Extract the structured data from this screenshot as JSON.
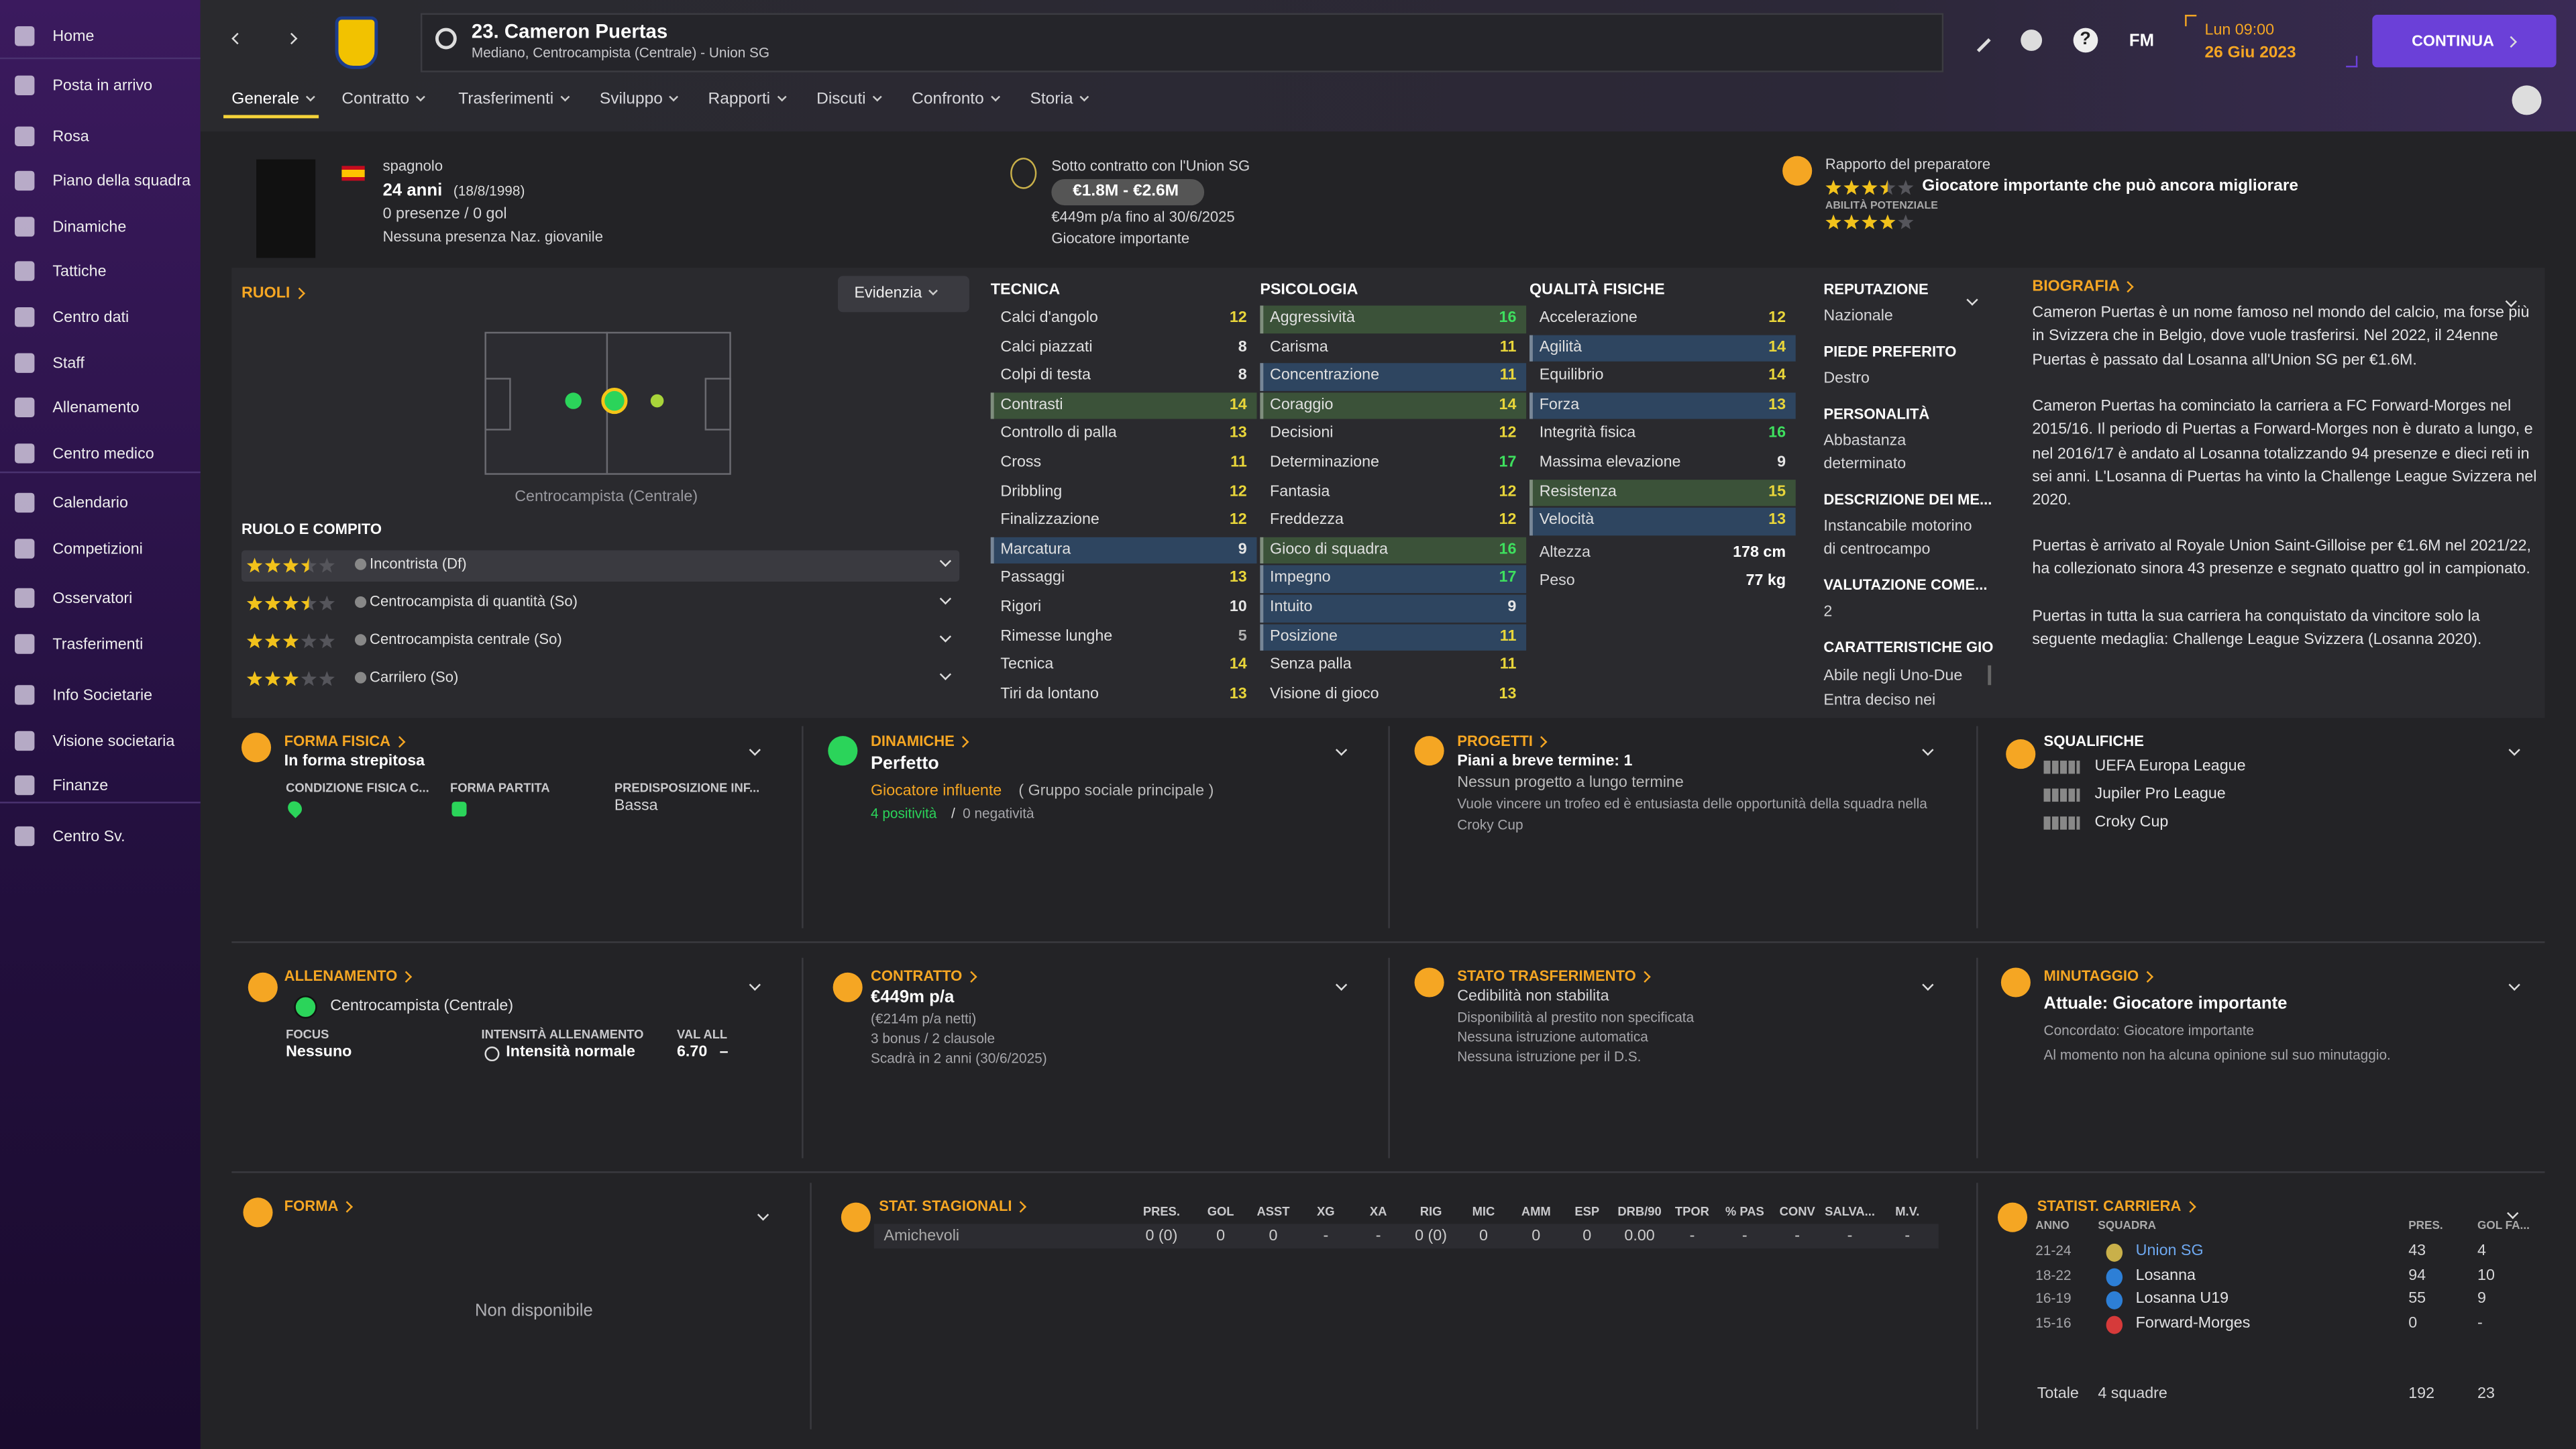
{
  "sidebar": [
    "Home",
    "Posta in arrivo",
    "Rosa",
    "Piano della squadra",
    "Dinamiche",
    "Tattiche",
    "Centro dati",
    "Staff",
    "Allenamento",
    "Centro medico",
    "Calendario",
    "Competizioni",
    "Osservatori",
    "Trasferimenti",
    "Info Societarie",
    "Visione societaria",
    "Finanze",
    "Centro Sv."
  ],
  "header": {
    "title": "23. Cameron Puertas",
    "subtitle": "Mediano, Centrocampista (Centrale) - Union SG",
    "help": "?",
    "brand": "FM",
    "day_time": "Lun 09:00",
    "date": "26 Giu 2023",
    "continue": "CONTINUA"
  },
  "tabs": [
    "Generale",
    "Contratto",
    "Trasferimenti",
    "Sviluppo",
    "Rapporti",
    "Discuti",
    "Confronto",
    "Storia"
  ],
  "profile": {
    "nationality": "spagnolo",
    "age": "24 anni",
    "birth_date": "(18/8/1998)",
    "appearances": "0 presenze / 0 gol",
    "youth_caps": "Nessuna presenza Naz. giovanile"
  },
  "contract_summary": {
    "club": "Sotto contratto con l'Union SG",
    "value": "€1.8M - €2.6M",
    "wage": "€449m p/a fino al 30/6/2025",
    "status": "Giocatore importante"
  },
  "coach_report": {
    "title": "Rapporto del preparatore",
    "current_stars": 3.5,
    "summary": "Giocatore importante che può ancora migliorare",
    "potential_label": "ABILITÀ POTENZIALE",
    "potential_stars": 4
  },
  "roles": {
    "title": "RUOLI",
    "highlight_button": "Evidenzia",
    "position": "Centrocampista (Centrale)",
    "role_title": "RUOLO E COMPITO",
    "list": [
      {
        "name": "Incontrista (Df)",
        "stars": 3.5
      },
      {
        "name": "Centrocampista di quantità (So)",
        "stars": 3.5
      },
      {
        "name": "Centrocampista centrale (So)",
        "stars": 3
      },
      {
        "name": "Carrilero (So)",
        "stars": 3
      }
    ]
  },
  "attributes": {
    "groups": [
      {
        "title": "TECNICA",
        "items": [
          {
            "name": "Calci d'angolo",
            "value": 12
          },
          {
            "name": "Calci piazzati",
            "value": 8
          },
          {
            "name": "Colpi di testa",
            "value": 8
          },
          {
            "name": "Contrasti",
            "value": 14,
            "highlight": "#3b5239"
          },
          {
            "name": "Controllo di palla",
            "value": 13
          },
          {
            "name": "Cross",
            "value": 11
          },
          {
            "name": "Dribbling",
            "value": 12
          },
          {
            "name": "Finalizzazione",
            "value": 12
          },
          {
            "name": "Marcatura",
            "value": 9,
            "highlight": "#2e4560"
          },
          {
            "name": "Passaggi",
            "value": 13
          },
          {
            "name": "Rigori",
            "value": 10
          },
          {
            "name": "Rimesse lunghe",
            "value": 5
          },
          {
            "name": "Tecnica",
            "value": 14
          },
          {
            "name": "Tiri da lontano",
            "value": 13
          }
        ]
      },
      {
        "title": "PSICOLOGIA",
        "items": [
          {
            "name": "Aggressività",
            "value": 16,
            "highlight": "#3b5239"
          },
          {
            "name": "Carisma",
            "value": 11
          },
          {
            "name": "Concentrazione",
            "value": 11,
            "highlight": "#2e4560"
          },
          {
            "name": "Coraggio",
            "value": 14,
            "highlight": "#3b5239"
          },
          {
            "name": "Decisioni",
            "value": 12
          },
          {
            "name": "Determinazione",
            "value": 17
          },
          {
            "name": "Fantasia",
            "value": 12
          },
          {
            "name": "Freddezza",
            "value": 12
          },
          {
            "name": "Gioco di squadra",
            "value": 16,
            "highlight": "#3b5239"
          },
          {
            "name": "Impegno",
            "value": 17,
            "highlight": "#2e4560"
          },
          {
            "name": "Intuito",
            "value": 9,
            "highlight": "#2e4560"
          },
          {
            "name": "Posizione",
            "value": 11,
            "highlight": "#2e4560"
          },
          {
            "name": "Senza palla",
            "value": 11
          },
          {
            "name": "Visione di gioco",
            "value": 13
          }
        ]
      },
      {
        "title": "QUALITÀ FISICHE",
        "items": [
          {
            "name": "Accelerazione",
            "value": 12
          },
          {
            "name": "Agilità",
            "value": 14,
            "highlight": "#2e4560"
          },
          {
            "name": "Equilibrio",
            "value": 14
          },
          {
            "name": "Forza",
            "value": 13,
            "highlight": "#2e4560"
          },
          {
            "name": "Integrità fisica",
            "value": 16
          },
          {
            "name": "Massima elevazione",
            "value": 9
          },
          {
            "name": "Resistenza",
            "value": 15,
            "highlight": "#3b5239"
          },
          {
            "name": "Velocità",
            "value": 13,
            "highlight": "#2e4560"
          }
        ],
        "measures": [
          {
            "name": "Altezza",
            "value": "178 cm"
          },
          {
            "name": "Peso",
            "value": "77 kg"
          }
        ]
      }
    ]
  },
  "info": [
    {
      "label": "REPUTAZIONE",
      "value": "Nazionale"
    },
    {
      "label": "PIEDE PREFERITO",
      "value": "Destro"
    },
    {
      "label": "PERSONALITÀ",
      "value": "Abbastanza determinato"
    },
    {
      "label": "DESCRIZIONE DEI ME...",
      "value": "Instancabile motorino di centrocampo"
    },
    {
      "label": "VALUTAZIONE COME...",
      "value": "2"
    },
    {
      "label": "CARATTERISTICHE GIO",
      "value": [
        "Abile negli Uno-Due",
        "Entra deciso nei"
      ]
    }
  ],
  "biography": {
    "title": "BIOGRAFIA",
    "paragraphs": [
      "Cameron Puertas è un nome famoso nel mondo del calcio, ma forse più in Svizzera che in Belgio, dove vuole trasferirsi. Nel 2022, il 24enne Puertas è passato dal Losanna all'Union SG per €1.6M.",
      "Cameron Puertas ha cominciato la carriera a FC Forward-Morges nel 2015/16. Il periodo di Puertas a Forward-Morges non è durato a lungo, e nel 2016/17 è andato al Losanna totalizzando 94 presenze e dieci reti in sei anni. L'Losanna di Puertas ha vinto la Challenge League Svizzera nel 2020.",
      "Puertas è arrivato al Royale Union Saint-Gilloise per €1.6M nel 2021/22, ha collezionato sinora 43 presenze e segnato quattro gol in campionato.",
      "Puertas in tutta la sua carriera ha conquistato da vincitore solo la seguente medaglia: Challenge League Svizzera (Losanna 2020)."
    ]
  },
  "fitness": {
    "title": "FORMA FISICA",
    "status": "In forma strepitosa",
    "condition_label": "CONDIZIONE FISICA C...",
    "match_label": "FORMA PARTITA",
    "injury_label": "PREDISPOSIZIONE INF...",
    "injury_value": "Bassa"
  },
  "dynamics": {
    "title": "DINAMICHE",
    "status": "Perfetto",
    "influence": "Giocatore influente",
    "group": "( Gruppo sociale principale )",
    "positives": "4 positività",
    "separator": "/",
    "negatives": "0 negatività"
  },
  "plans": {
    "title": "PROGETTI",
    "short_term": "Piani a breve termine: 1",
    "long_term": "Nessun progetto a lungo termine",
    "note": "Vuole vincere un trofeo ed è entusiasta delle opportunità della squadra nella Croky Cup"
  },
  "suspensions": {
    "title": "SQUALIFICHE",
    "list": [
      "UEFA Europa League",
      "Jupiler Pro League",
      "Croky Cup"
    ]
  },
  "training": {
    "title": "ALLENAMENTO",
    "role": "Centrocampista (Centrale)",
    "focus_label": "FOCUS",
    "focus": "Nessuno",
    "intensity_label": "INTENSITÀ ALLENAMENTO",
    "intensity": "Intensità normale",
    "rating_label": "VAL ALL",
    "rating": "6.70",
    "trend": "–"
  },
  "contract": {
    "title": "CONTRATTO",
    "wage": "€449m p/a",
    "net": "(€214m p/a netti)",
    "clauses": "3 bonus / 2 clausole",
    "expiry": "Scadrà in 2 anni (30/6/2025)"
  },
  "transfer_status": {
    "title": "STATO TRASFERIMENTO",
    "status": "Cedibilità non stabilita",
    "loan": "Disponibilità al prestito non specificata",
    "auto": "Nessuna istruzione automatica",
    "ds": "Nessuna istruzione per il D.S."
  },
  "playing_time": {
    "title": "MINUTAGGIO",
    "current": "Attuale: Giocatore importante",
    "agreed": "Concordato: Giocatore importante",
    "opinion": "Al momento non ha alcuna opinione sul suo minutaggio."
  },
  "form": {
    "title": "FORMA",
    "empty": "Non disponibile"
  },
  "season_stats": {
    "title": "STAT. STAGIONALI",
    "headers": [
      "PRES.",
      "GOL",
      "ASST",
      "XG",
      "XA",
      "RIG",
      "MIC",
      "AMM",
      "ESP",
      "DRB/90",
      "TPOR",
      "% PAS",
      "CONV",
      "SALVA...",
      "M.V."
    ],
    "rows": [
      {
        "competition": "Amichevoli",
        "values": [
          "0 (0)",
          "0",
          "0",
          "-",
          "-",
          "0 (0)",
          "0",
          "0",
          "0",
          "0.00",
          "-",
          "-",
          "-",
          "-",
          "-"
        ]
      }
    ]
  },
  "career": {
    "title": "STATIST. CARRIERA",
    "headers": [
      "ANNO",
      "SQUADRA",
      "PRES.",
      "GOL FA..."
    ],
    "rows": [
      {
        "years": "21-24",
        "team": "Union SG",
        "apps": 43,
        "goals": 4
      },
      {
        "years": "18-22",
        "team": "Losanna",
        "apps": 94,
        "goals": 10
      },
      {
        "years": "16-19",
        "team": "Losanna U19",
        "apps": 55,
        "goals": 9
      },
      {
        "years": "15-16",
        "team": "Forward-Morges",
        "apps": 0,
        "goals": "-"
      }
    ],
    "total": {
      "label": "Totale",
      "teams": "4 squadre",
      "apps": 192,
      "goals": 23
    }
  }
}
